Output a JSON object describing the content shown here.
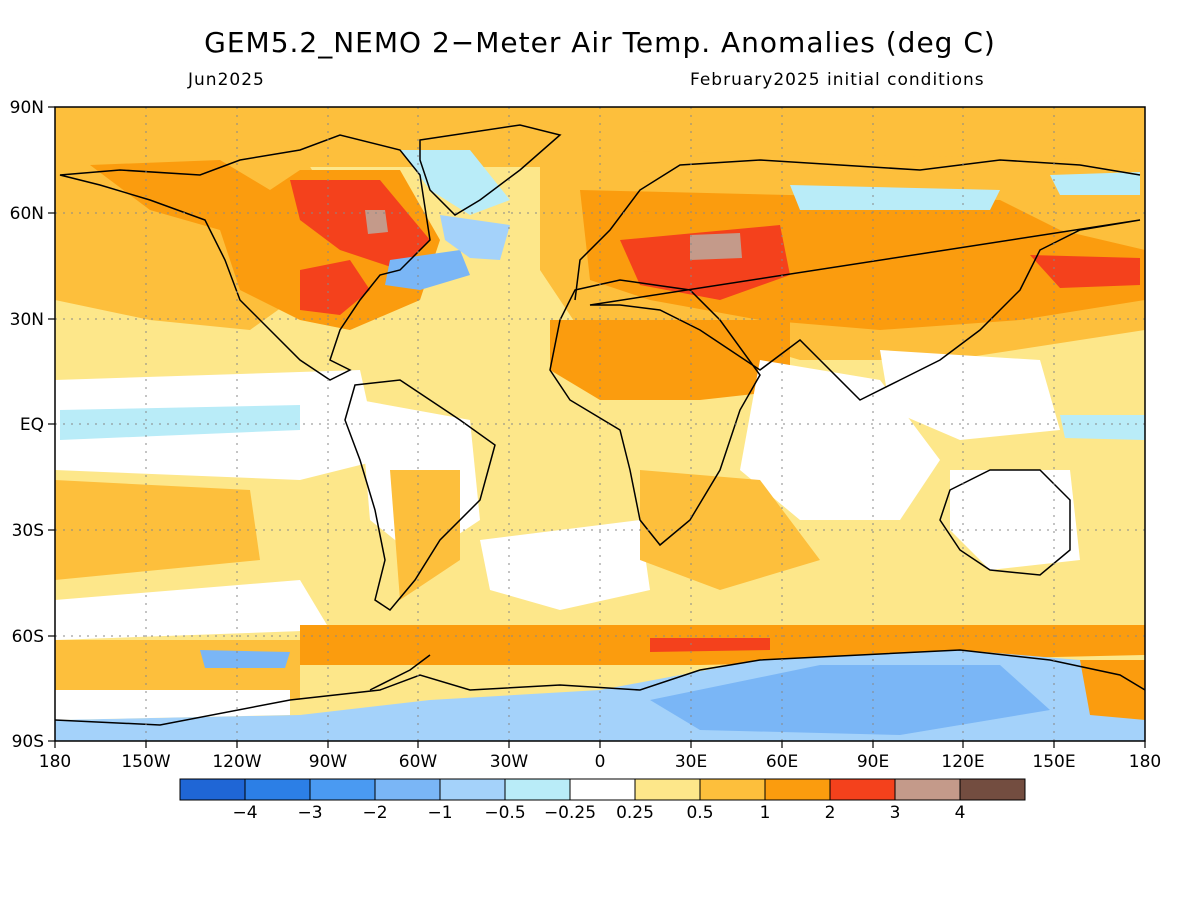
{
  "title": "GEM5.2_NEMO 2−Meter Air Temp. Anomalies (deg C)",
  "subtitle_left": "Jun2025",
  "subtitle_right": "February2025 initial conditions",
  "lat_labels": [
    "90N",
    "60N",
    "30N",
    "EQ",
    "30S",
    "60S",
    "90S"
  ],
  "lon_labels": [
    "180",
    "150W",
    "120W",
    "90W",
    "60W",
    "30W",
    "0",
    "30E",
    "60E",
    "90E",
    "120E",
    "150E",
    "180"
  ],
  "legend": {
    "colors": [
      "#1f66d6",
      "#2c7fe6",
      "#4a9af2",
      "#7ab6f6",
      "#a4d2fa",
      "#b9ecf8",
      "#ffffff",
      "#fde78a",
      "#fdbf3c",
      "#fb9c0e",
      "#f4411c",
      "#c49a8a",
      "#734d40"
    ],
    "labels": [
      "−4",
      "−3",
      "−2",
      "−1",
      "−0.5",
      "−0.25",
      "0.25",
      "0.5",
      "1",
      "2",
      "3",
      "4"
    ]
  },
  "colors": {
    "ocean_warm": "#fde78a",
    "warm": "#fdbf3c",
    "hot": "#fb9c0e",
    "very_hot": "#f4411c",
    "extreme": "#c49a8a",
    "cool": "#a4d2fa",
    "cold": "#7ab6f6"
  }
}
